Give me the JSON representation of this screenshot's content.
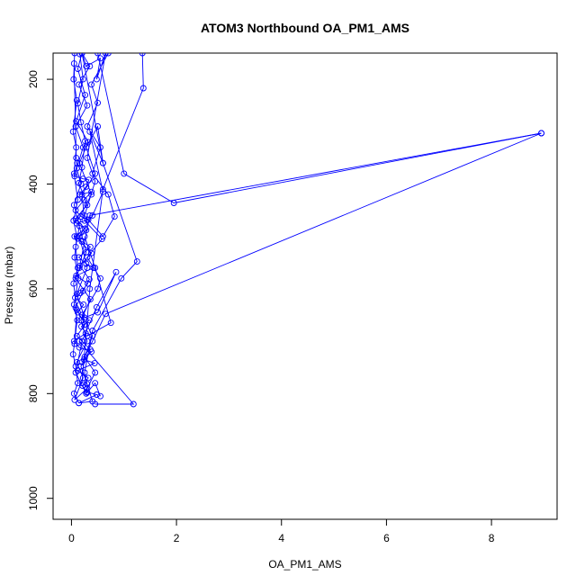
{
  "chart_data": {
    "type": "line",
    "title": "ATOM3 Northbound OA_PM1_AMS",
    "xlabel": "OA_PM1_AMS",
    "ylabel": "Pressure (mbar)",
    "xlim": [
      -0.35,
      9.25
    ],
    "ylim": [
      1040,
      150
    ],
    "y_inverted": true,
    "x_ticks": [
      0,
      2,
      4,
      6,
      8
    ],
    "x_tick_labels": [
      "0",
      "2",
      "4",
      "6",
      "8"
    ],
    "y_ticks": [
      200,
      400,
      600,
      800,
      1000
    ],
    "y_tick_labels": [
      "200",
      "400",
      "600",
      "800",
      "1000"
    ],
    "grid": false,
    "legend": "none",
    "series_color": "#0000ff",
    "series": [
      {
        "points": [
          [
            0.06,
            705
          ],
          [
            0.1,
            640
          ],
          [
            0.04,
            590
          ],
          [
            0.12,
            560
          ],
          [
            0.08,
            520
          ],
          [
            0.15,
            480
          ],
          [
            0.05,
            440
          ],
          [
            0.18,
            400
          ],
          [
            0.1,
            370
          ],
          [
            0.22,
            330
          ],
          [
            0.08,
            290
          ],
          [
            0.3,
            250
          ],
          [
            0.14,
            210
          ],
          [
            0.35,
            175
          ],
          [
            0.2,
            150
          ],
          [
            0.12,
            180
          ],
          [
            0.26,
            230
          ],
          [
            0.09,
            280
          ],
          [
            0.32,
            320
          ],
          [
            0.15,
            360
          ],
          [
            0.38,
            420
          ],
          [
            0.12,
            470
          ],
          [
            0.28,
            530
          ],
          [
            0.08,
            580
          ],
          [
            0.36,
            620
          ],
          [
            0.18,
            660
          ],
          [
            0.3,
            700
          ],
          [
            0.1,
            740
          ],
          [
            0.22,
            770
          ],
          [
            0.06,
            812
          ],
          [
            0.3,
            790
          ],
          [
            0.45,
            760
          ],
          [
            0.25,
            730
          ],
          [
            0.4,
            690
          ],
          [
            0.2,
            650
          ],
          [
            0.5,
            600
          ],
          [
            0.55,
            580
          ],
          [
            0.3,
            540
          ],
          [
            0.58,
            505
          ],
          [
            0.25,
            470
          ],
          [
            0.2,
            420
          ],
          [
            0.45,
            380
          ],
          [
            0.28,
            330
          ],
          [
            0.5,
            290
          ],
          [
            0.6,
            360
          ],
          [
            0.35,
            300
          ],
          [
            0.6,
            415
          ],
          [
            0.4,
            460
          ],
          [
            0.15,
            500
          ],
          [
            0.3,
            560
          ],
          [
            0.1,
            610
          ],
          [
            0.25,
            655
          ],
          [
            0.5,
            645
          ],
          [
            0.85,
            568
          ],
          [
            0.48,
            635
          ],
          [
            0.2,
            700
          ],
          [
            0.08,
            760
          ],
          [
            0.28,
            800
          ],
          [
            0.45,
            780
          ],
          [
            0.55,
            805
          ]
        ]
      },
      {
        "points": [
          [
            0.05,
            170
          ],
          [
            0.09,
            350
          ],
          [
            0.11,
            360
          ],
          [
            0.06,
            385
          ],
          [
            0.22,
            390
          ],
          [
            0.33,
            392
          ],
          [
            0.28,
            405
          ],
          [
            0.16,
            420
          ],
          [
            0.38,
            415
          ],
          [
            0.24,
            430
          ],
          [
            0.08,
            450
          ],
          [
            0.18,
            462
          ],
          [
            0.32,
            468
          ],
          [
            0.1,
            475
          ],
          [
            0.26,
            485
          ],
          [
            0.06,
            500
          ],
          [
            0.2,
            510
          ],
          [
            0.36,
            520
          ],
          [
            0.14,
            540
          ],
          [
            0.28,
            552
          ],
          [
            0.42,
            560
          ],
          [
            0.09,
            575
          ],
          [
            0.31,
            590
          ],
          [
            0.17,
            608
          ],
          [
            0.07,
            617
          ],
          [
            0.23,
            630
          ],
          [
            0.12,
            645
          ],
          [
            0.34,
            660
          ],
          [
            0.19,
            672
          ],
          [
            0.27,
            685
          ],
          [
            0.05,
            700
          ],
          [
            0.15,
            712
          ],
          [
            0.38,
            720
          ],
          [
            0.24,
            735
          ],
          [
            0.44,
            742
          ],
          [
            0.12,
            756
          ],
          [
            0.32,
            770
          ],
          [
            0.21,
            785
          ],
          [
            0.29,
            797
          ],
          [
            0.48,
            802
          ],
          [
            0.14,
            818
          ],
          [
            0.4,
            815
          ],
          [
            0.3,
            782
          ],
          [
            0.18,
            748
          ],
          [
            0.36,
            716
          ],
          [
            0.1,
            690
          ],
          [
            0.26,
            668
          ],
          [
            0.08,
            636
          ],
          [
            0.22,
            604
          ],
          [
            0.34,
            582
          ],
          [
            0.16,
            556
          ],
          [
            0.38,
            532
          ],
          [
            0.12,
            504
          ],
          [
            0.28,
            488
          ],
          [
            0.08,
            466
          ],
          [
            0.3,
            440
          ],
          [
            0.14,
            398
          ],
          [
            0.2,
            368
          ],
          [
            0.26,
            318
          ],
          [
            0.18,
            282
          ],
          [
            0.12,
            246
          ],
          [
            0.22,
            200
          ],
          [
            0.16,
            152
          ]
        ]
      },
      {
        "points": [
          [
            0.2,
            150
          ],
          [
            0.28,
            175
          ],
          [
            0.55,
            160
          ],
          [
            0.48,
            200
          ],
          [
            0.65,
            150
          ],
          [
            0.3,
            350
          ],
          [
            0.45,
            395
          ],
          [
            0.25,
            460
          ],
          [
            0.6,
            500
          ],
          [
            0.82,
            462
          ],
          [
            0.7,
            420
          ],
          [
            0.4,
            380
          ],
          [
            0.55,
            330
          ],
          [
            0.3,
            290
          ],
          [
            0.5,
            245
          ],
          [
            0.38,
            210
          ],
          [
            0.7,
            150
          ]
        ]
      },
      {
        "points": [
          [
            0.06,
            150
          ],
          [
            0.04,
            200
          ],
          [
            0.1,
            240
          ],
          [
            0.03,
            300
          ],
          [
            0.09,
            330
          ],
          [
            0.05,
            380
          ],
          [
            0.12,
            430
          ],
          [
            0.04,
            470
          ],
          [
            0.1,
            500
          ],
          [
            0.06,
            540
          ],
          [
            0.13,
            580
          ],
          [
            0.05,
            630
          ],
          [
            0.11,
            660
          ],
          [
            0.03,
            725
          ],
          [
            0.08,
            748
          ],
          [
            0.12,
            780
          ],
          [
            0.05,
            800
          ],
          [
            0.14,
            818
          ]
        ]
      },
      {
        "points": [
          [
            0.2,
            150
          ],
          [
            0.6,
            360
          ],
          [
            1.25,
            548
          ],
          [
            0.95,
            580
          ],
          [
            0.4,
            680
          ],
          [
            0.25,
            760
          ],
          [
            0.3,
            798
          ]
        ]
      },
      {
        "points": [
          [
            0.5,
            150
          ],
          [
            1.0,
            380
          ],
          [
            1.95,
            436
          ],
          [
            8.95,
            303
          ],
          [
            0.65,
            648
          ],
          [
            0.4,
            700
          ],
          [
            0.2,
            740
          ]
        ]
      },
      {
        "points": [
          [
            1.35,
            150
          ],
          [
            1.37,
            217
          ],
          [
            0.6,
            410
          ],
          [
            0.35,
            600
          ],
          [
            0.2,
            780
          ]
        ]
      },
      {
        "points": [
          [
            8.95,
            303
          ],
          [
            0.35,
            460
          ],
          [
            0.15,
            560
          ]
        ]
      },
      {
        "points": [
          [
            0.3,
            690
          ],
          [
            0.75,
            665
          ],
          [
            0.45,
            560
          ],
          [
            0.25,
            500
          ]
        ]
      },
      {
        "points": [
          [
            0.15,
            700
          ],
          [
            1.18,
            820
          ],
          [
            0.45,
            820
          ]
        ]
      }
    ]
  }
}
